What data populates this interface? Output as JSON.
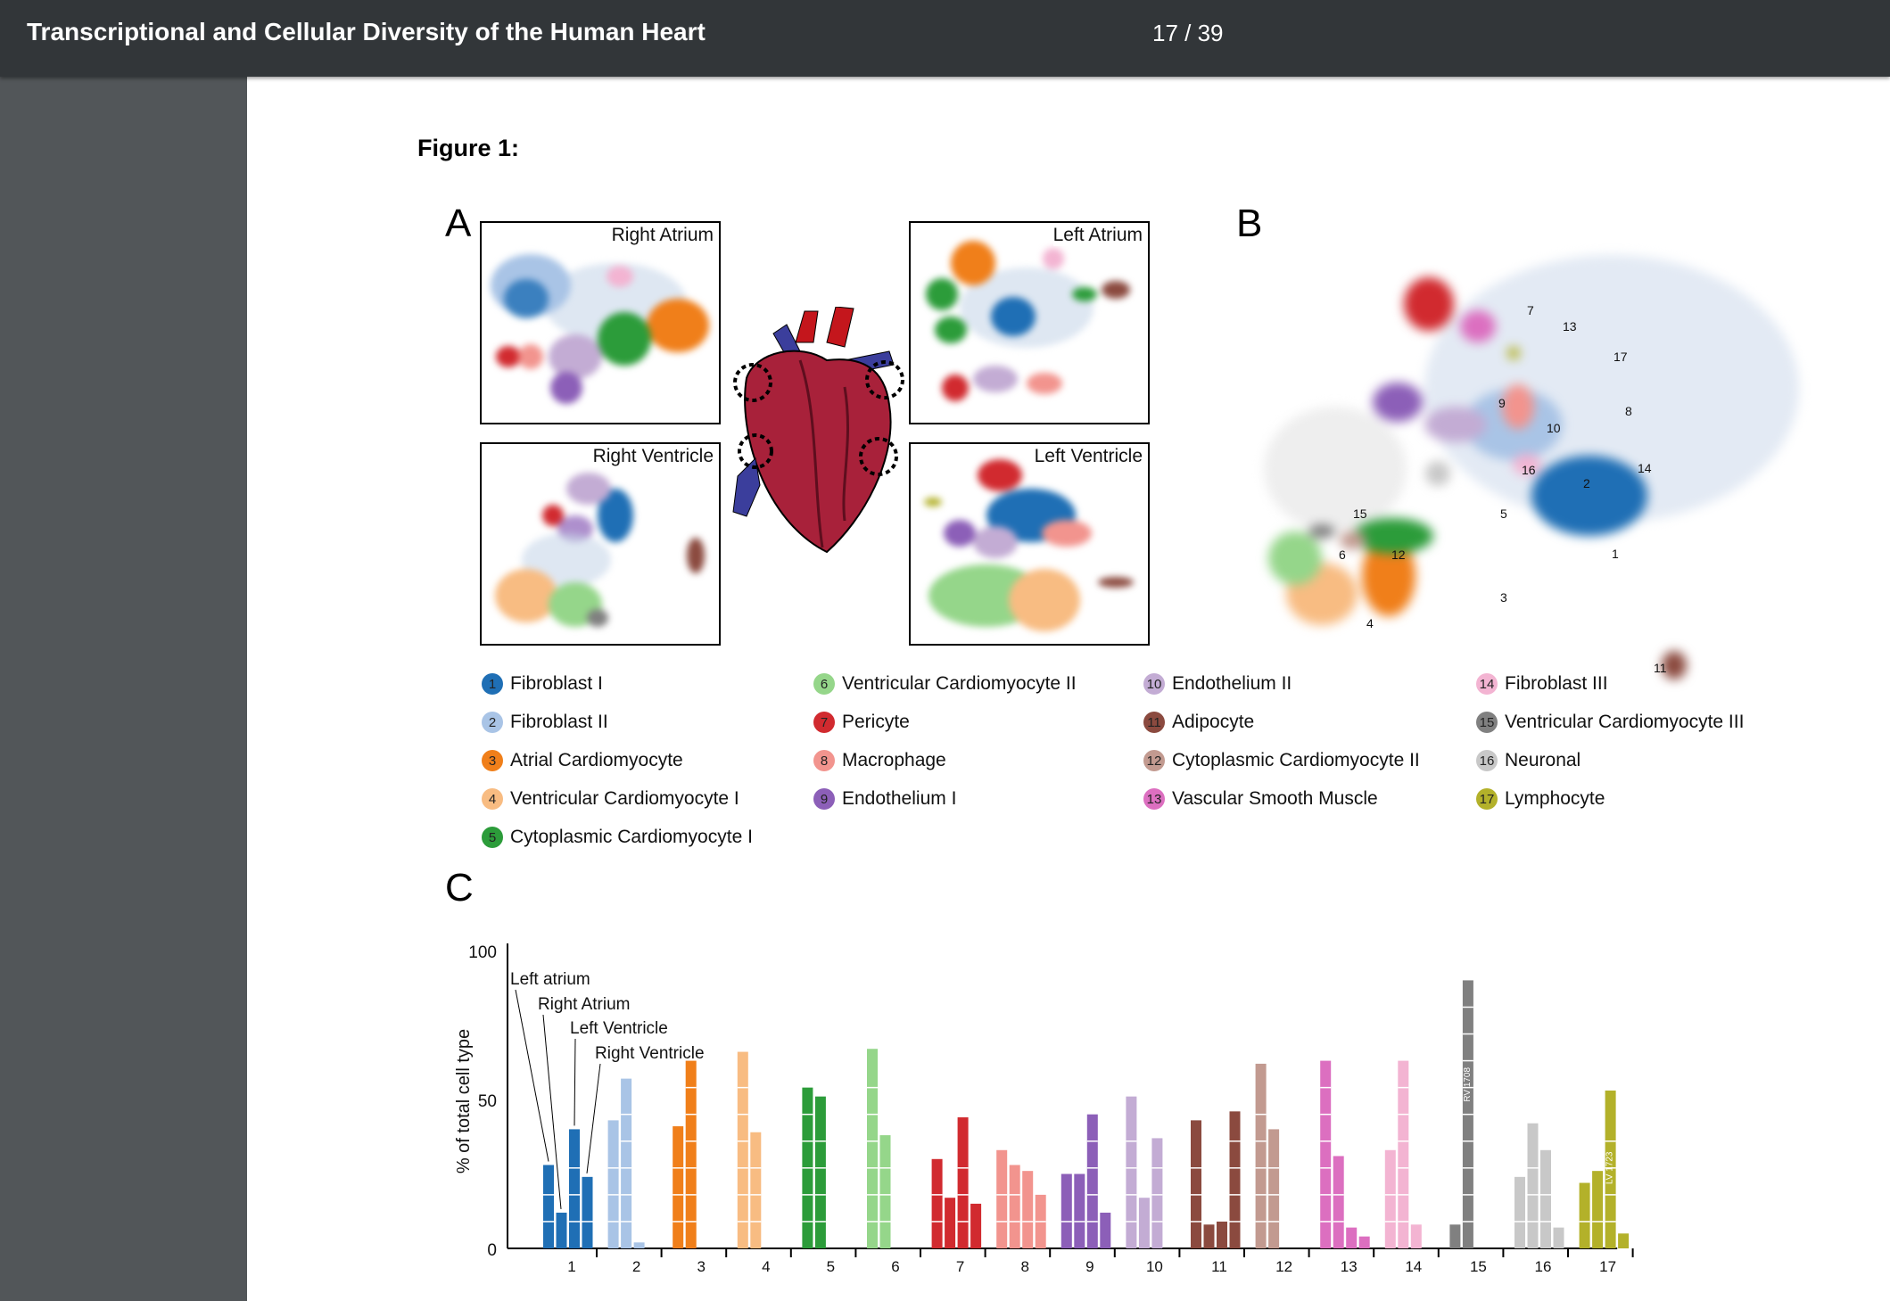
{
  "viewer": {
    "title": "Transcriptional and Cellular Diversity of the Human Heart",
    "page_indicator": "17 / 39"
  },
  "figure": {
    "label": "Figure 1:",
    "panel_a": {
      "letter": "A",
      "titles": {
        "ra": "Right Atrium",
        "la": "Left Atrium",
        "rv": "Right Ventricle",
        "lv": "Left Ventricle"
      }
    },
    "panel_b": {
      "letter": "B"
    },
    "panel_c": {
      "letter": "C"
    }
  },
  "legend": [
    {
      "num": "1",
      "label": "Fibroblast I",
      "color": "#1f6fb5"
    },
    {
      "num": "2",
      "label": "Fibroblast II",
      "color": "#a9c4e6"
    },
    {
      "num": "3",
      "label": "Atrial Cardiomyocyte",
      "color": "#f07f1a"
    },
    {
      "num": "4",
      "label": "Ventricular Cardiomyocyte I",
      "color": "#f8bc82"
    },
    {
      "num": "5",
      "label": "Cytoplasmic Cardiomyocyte I",
      "color": "#2c9c3a"
    },
    {
      "num": "6",
      "label": "Ventricular Cardiomyocyte II",
      "color": "#95d68a"
    },
    {
      "num": "7",
      "label": "Pericyte",
      "color": "#d12a2f"
    },
    {
      "num": "8",
      "label": "Macrophage",
      "color": "#f2948e"
    },
    {
      "num": "9",
      "label": "Endothelium I",
      "color": "#8c5fb8"
    },
    {
      "num": "10",
      "label": "Endothelium II",
      "color": "#c3acd4"
    },
    {
      "num": "11",
      "label": "Adipocyte",
      "color": "#8b4a3f"
    },
    {
      "num": "12",
      "label": "Cytoplasmic Cardiomyocyte II",
      "color": "#c29a90"
    },
    {
      "num": "13",
      "label": "Vascular Smooth Muscle",
      "color": "#dc6fc0"
    },
    {
      "num": "14",
      "label": "Fibroblast III",
      "color": "#f3b4d2"
    },
    {
      "num": "15",
      "label": "Ventricular Cardiomyocyte III",
      "color": "#808080"
    },
    {
      "num": "16",
      "label": "Neuronal",
      "color": "#c8c8c8"
    },
    {
      "num": "17",
      "label": "Lymphocyte",
      "color": "#b3b12a"
    }
  ],
  "cluster_labels_b": [
    "1",
    "2",
    "3",
    "4",
    "5",
    "6",
    "7",
    "8",
    "9",
    "10",
    "11",
    "12",
    "13",
    "14",
    "15",
    "16",
    "17"
  ],
  "chart_data": {
    "type": "bar",
    "ylabel": "% of total cell type",
    "ylim": [
      0,
      100
    ],
    "yticks": [
      "0",
      "50",
      "100"
    ],
    "categories": [
      "1",
      "2",
      "3",
      "4",
      "5",
      "6",
      "7",
      "8",
      "9",
      "10",
      "11",
      "12",
      "13",
      "14",
      "15",
      "16",
      "17"
    ],
    "series": [
      {
        "name": "Left atrium",
        "values": [
          28,
          43,
          41,
          66,
          54,
          67,
          30,
          33,
          25,
          51,
          43,
          62,
          63,
          33,
          8,
          24,
          22
        ]
      },
      {
        "name": "Right Atrium",
        "values": [
          12,
          57,
          63,
          39,
          51,
          38,
          17,
          28,
          25,
          17,
          8,
          40,
          31,
          63,
          90,
          42,
          26
        ]
      },
      {
        "name": "Left Ventricle",
        "values": [
          40,
          2,
          0,
          0,
          0,
          0,
          44,
          26,
          45,
          37,
          9,
          0,
          7,
          8,
          0,
          33,
          53
        ]
      },
      {
        "name": "Right Ventricle",
        "values": [
          24,
          0,
          0,
          0,
          0,
          0,
          15,
          18,
          12,
          0,
          46,
          0,
          4,
          0,
          0,
          7,
          5
        ]
      }
    ],
    "annotations": [
      "Left atrium",
      "Right Atrium",
      "Left Ventricle",
      "Right Ventricle",
      "RV 1708",
      "LV 1723"
    ]
  }
}
